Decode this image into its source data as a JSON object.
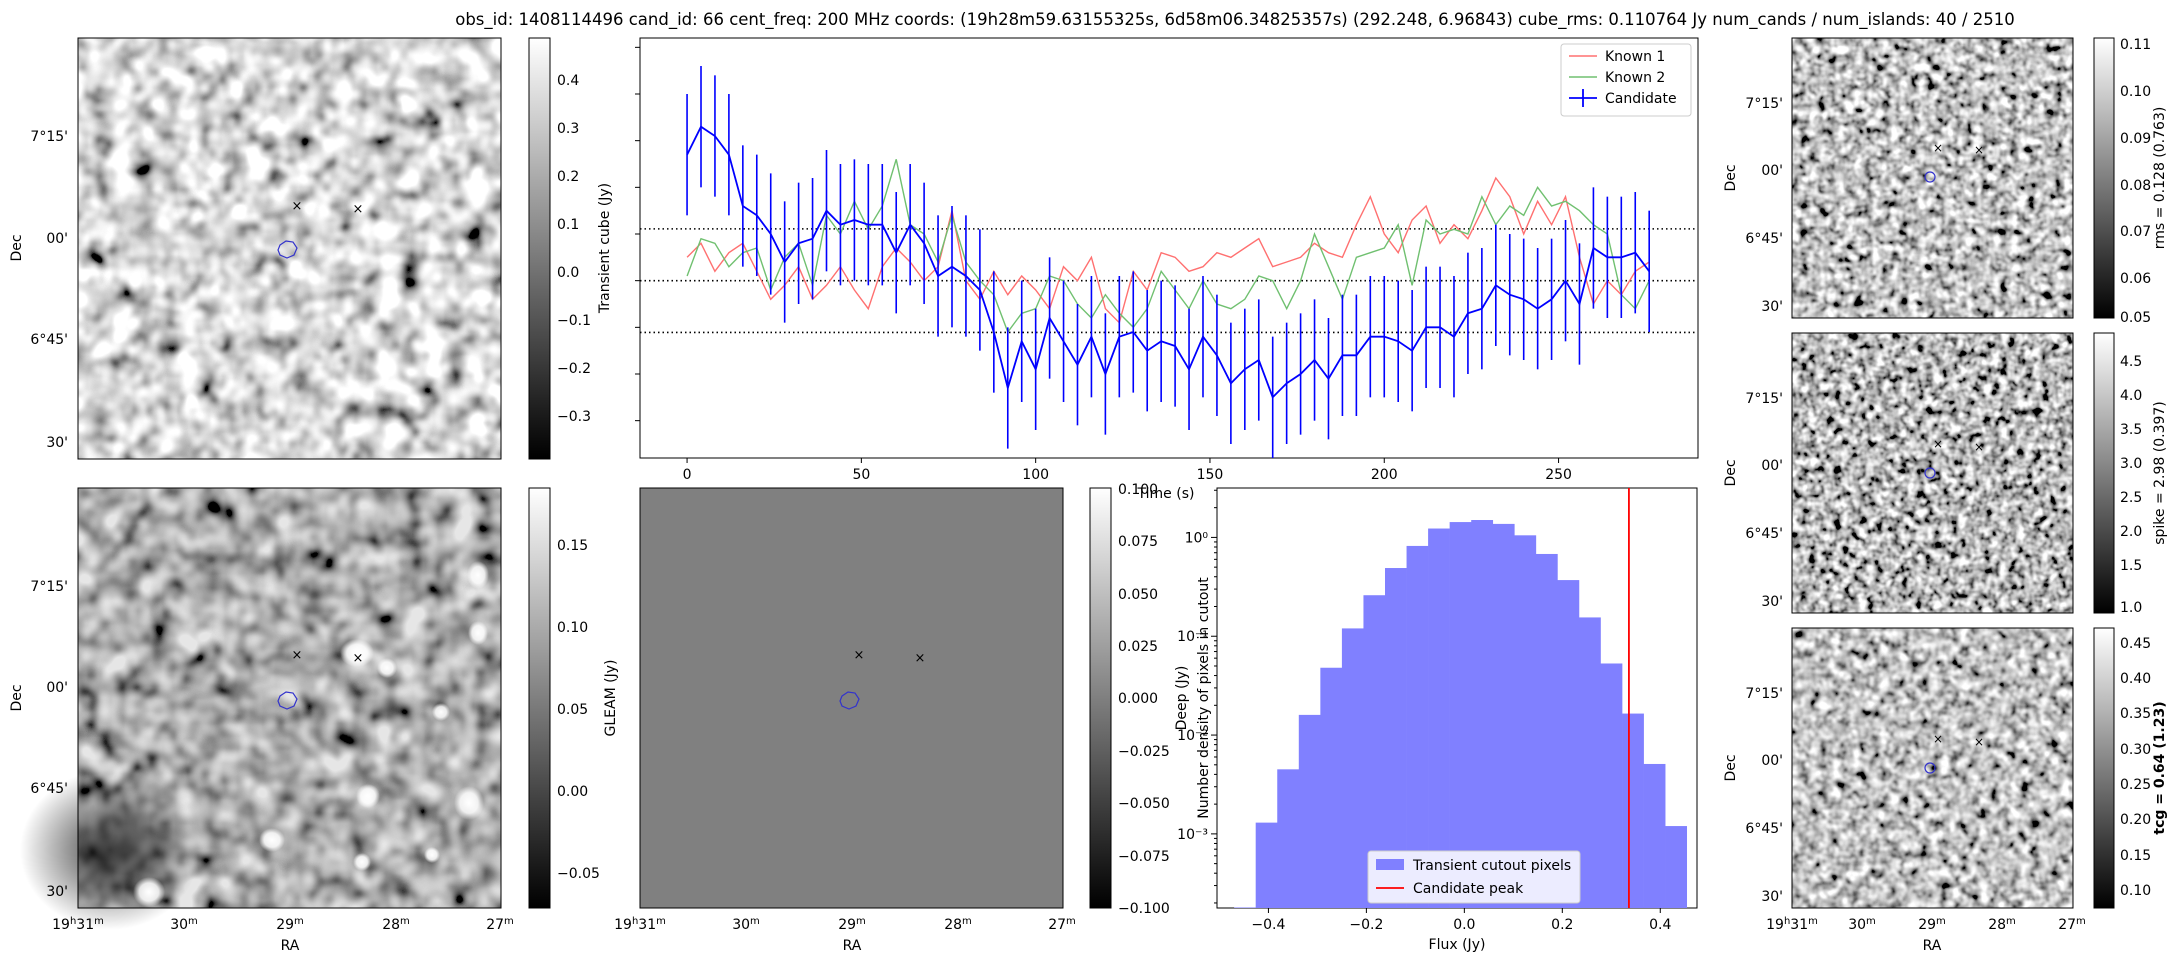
{
  "figure": {
    "title": "obs_id: 1408114496 cand_id: 66 cent_freq: 200 MHz coords: (19h28m59.63155325s, 6d58m06.34825357s) (292.248, 6.96843) cube_rms: 0.110764 Jy num_cands / num_islands: 40 / 2510"
  },
  "colors": {
    "candidate": "#0000ff",
    "known1": "#ff7070",
    "known2": "#70c070",
    "marker_red": "#ff0000",
    "marker_green": "#008000",
    "contour": "#3333cc",
    "hist_fill": "#8080ff",
    "peak_line": "#ff0000"
  },
  "images": {
    "dec_ticks": [
      "7°15'",
      "00'",
      "6°45'",
      "30'"
    ],
    "ra_ticks": [
      "19h31m",
      "30m",
      "29m",
      "28m",
      "27m"
    ],
    "ra_label": "RA",
    "dec_label": "Dec",
    "transient": {
      "colorbar_label": "Transient cube (Jy)",
      "colorbar_ticks": [
        "0.4",
        "0.3",
        "0.2",
        "0.1",
        "0.0",
        "−0.1",
        "−0.2",
        "−0.3"
      ]
    },
    "deep": {
      "colorbar_label": "Deep (Jy)",
      "colorbar_ticks": [
        "0.15",
        "0.10",
        "0.05",
        "0.00",
        "−0.05"
      ]
    },
    "gleam": {
      "colorbar_label": "GLEAM (Jy)",
      "colorbar_ticks": [
        "0.100",
        "0.075",
        "0.050",
        "0.025",
        "0.000",
        "−0.025",
        "−0.050",
        "−0.075",
        "−0.100"
      ]
    },
    "rms": {
      "colorbar_label": "rms = 0.128 (0.763)",
      "colorbar_ticks": [
        "0.11",
        "0.10",
        "0.09",
        "0.08",
        "0.07",
        "0.06",
        "0.05"
      ]
    },
    "spike": {
      "colorbar_label": "spike = 2.98 (0.397)",
      "colorbar_ticks": [
        "4.5",
        "4.0",
        "3.5",
        "3.0",
        "2.5",
        "2.0",
        "1.5",
        "1.0"
      ]
    },
    "tcg": {
      "colorbar_label": "tcg = 0.64 (1.23)",
      "colorbar_ticks": [
        "0.45",
        "0.40",
        "0.35",
        "0.30",
        "0.25",
        "0.20",
        "0.15",
        "0.10"
      ]
    }
  },
  "chart_data": [
    {
      "type": "line",
      "title": "",
      "xlabel": "Time (s)",
      "ylabel": "",
      "xlim": [
        -13.5,
        290
      ],
      "ylim": [
        -0.38,
        0.52
      ],
      "xticks": [
        0,
        50,
        100,
        150,
        200,
        250
      ],
      "hlines_dotted": [
        0.111,
        0.0,
        -0.111
      ],
      "legend": {
        "position": "top-right",
        "entries": [
          "Known 1",
          "Known 2",
          "Candidate"
        ]
      },
      "x": [
        0,
        4,
        8,
        12,
        16,
        20,
        24,
        28,
        32,
        36,
        40,
        44,
        48,
        52,
        56,
        60,
        64,
        68,
        72,
        76,
        80,
        84,
        88,
        92,
        96,
        100,
        104,
        108,
        112,
        116,
        120,
        124,
        128,
        132,
        136,
        140,
        144,
        148,
        152,
        156,
        160,
        164,
        168,
        172,
        176,
        180,
        184,
        188,
        192,
        196,
        200,
        204,
        208,
        212,
        216,
        220,
        224,
        228,
        232,
        236,
        240,
        244,
        248,
        252,
        256,
        260,
        264,
        268,
        272,
        276
      ],
      "series": [
        {
          "name": "Known 1",
          "values": [
            0.05,
            0.08,
            0.02,
            0.06,
            0.08,
            0.02,
            -0.04,
            -0.01,
            0.03,
            -0.04,
            -0.01,
            0.03,
            -0.02,
            -0.06,
            0.03,
            0.07,
            0.04,
            0.0,
            0.03,
            0.15,
            0.0,
            -0.04,
            0.02,
            -0.03,
            0.01,
            -0.02,
            -0.06,
            0.03,
            0.0,
            0.05,
            -0.06,
            -0.09,
            0.02,
            -0.02,
            0.06,
            0.05,
            0.02,
            0.03,
            0.06,
            0.05,
            0.07,
            0.09,
            0.03,
            0.04,
            0.05,
            0.08,
            0.06,
            0.05,
            0.12,
            0.18,
            0.1,
            0.06,
            0.13,
            0.16,
            0.08,
            0.12,
            0.09,
            0.15,
            0.22,
            0.18,
            0.1,
            0.17,
            0.12,
            0.18,
            0.05,
            -0.05,
            0.0,
            -0.03,
            0.02,
            0.04
          ]
        },
        {
          "name": "Known 2",
          "values": [
            0.01,
            0.09,
            0.08,
            0.03,
            0.06,
            0.07,
            -0.02,
            0.05,
            0.08,
            -0.01,
            0.14,
            0.1,
            0.17,
            0.11,
            0.16,
            0.26,
            0.12,
            0.1,
            0.04,
            0.14,
            0.04,
            0.0,
            -0.03,
            -0.11,
            -0.07,
            -0.06,
            0.01,
            0.0,
            -0.05,
            -0.08,
            -0.03,
            -0.07,
            -0.1,
            -0.06,
            0.02,
            -0.02,
            -0.06,
            0.0,
            -0.05,
            -0.06,
            -0.04,
            0.01,
            0.0,
            -0.06,
            0.0,
            0.1,
            0.03,
            -0.04,
            0.05,
            0.06,
            0.07,
            0.12,
            -0.01,
            0.13,
            0.1,
            0.11,
            0.1,
            0.18,
            0.12,
            0.16,
            0.14,
            0.2,
            0.16,
            0.17,
            0.15,
            0.12,
            0.1,
            -0.03,
            -0.06,
            0.0
          ]
        },
        {
          "name": "Candidate",
          "values": [
            0.27,
            0.33,
            0.31,
            0.27,
            0.16,
            0.14,
            0.1,
            0.04,
            0.08,
            0.09,
            0.15,
            0.12,
            0.13,
            0.12,
            0.12,
            0.06,
            0.12,
            0.08,
            0.01,
            0.03,
            0.01,
            -0.02,
            -0.11,
            -0.23,
            -0.13,
            -0.19,
            -0.08,
            -0.13,
            -0.18,
            -0.12,
            -0.2,
            -0.12,
            -0.11,
            -0.15,
            -0.13,
            -0.14,
            -0.19,
            -0.12,
            -0.16,
            -0.22,
            -0.19,
            -0.17,
            -0.25,
            -0.22,
            -0.2,
            -0.17,
            -0.21,
            -0.16,
            -0.16,
            -0.12,
            -0.12,
            -0.13,
            -0.15,
            -0.1,
            -0.1,
            -0.12,
            -0.07,
            -0.06,
            -0.01,
            -0.03,
            -0.04,
            -0.06,
            -0.04,
            0.0,
            -0.05,
            0.07,
            0.05,
            0.05,
            0.06,
            0.02
          ],
          "errors": 0.13
        }
      ]
    },
    {
      "type": "bar",
      "title": "",
      "xlabel": "Flux (Jy)",
      "ylabel": "Number density of pixels in cutout",
      "yscale": "log",
      "xlim": [
        -0.505,
        0.475
      ],
      "ylim_log10": [
        -3.75,
        0.5
      ],
      "xticks": [
        "−0.4",
        "−0.2",
        "0.0",
        "0.2",
        "0.4"
      ],
      "yticks": [
        "10⁰",
        "10⁻¹",
        "10⁻²",
        "10⁻³"
      ],
      "bin_edges": [
        -0.47,
        -0.426,
        -0.382,
        -0.338,
        -0.294,
        -0.25,
        -0.206,
        -0.162,
        -0.118,
        -0.074,
        -0.03,
        0.014,
        0.058,
        0.102,
        0.146,
        0.19,
        0.234,
        0.278,
        0.322,
        0.366,
        0.41,
        0.454
      ],
      "values": [
        0.00018,
        0.0013,
        0.0045,
        0.016,
        0.048,
        0.12,
        0.26,
        0.49,
        0.82,
        1.23,
        1.43,
        1.5,
        1.37,
        1.05,
        0.68,
        0.37,
        0.155,
        0.053,
        0.0165,
        0.0051,
        0.0012
      ],
      "vline": 0.336,
      "legend": {
        "position": "bottom-center",
        "entries": [
          "Transient cutout pixels",
          "Candidate peak"
        ]
      }
    }
  ]
}
